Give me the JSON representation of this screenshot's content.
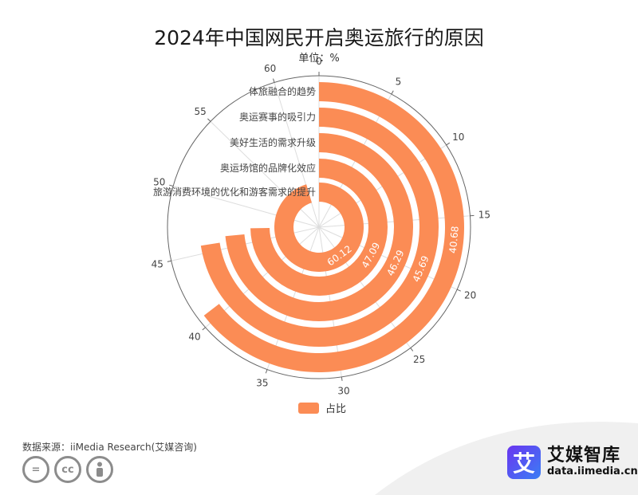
{
  "title": "2024年中国网民开启奥运旅行的原因",
  "unit": "单位：%",
  "legend_label": "占比",
  "source": "数据来源：iiMedia Research(艾媒咨询)",
  "brand": {
    "name": "艾媒智库",
    "url": "data.iimedia.cn",
    "logo_char": "艾"
  },
  "cc_icons": [
    "equals-icon",
    "cc-icon",
    "person-icon"
  ],
  "colors": {
    "bar": "#fb8c55",
    "axis": "#666666",
    "grid": "#dddddd"
  },
  "chart_data": {
    "type": "bar",
    "variant": "polar-radial-bar",
    "title": "2024年中国网民开启奥运旅行的原因",
    "unit": "单位：%",
    "categories": [
      "旅游消费环境的优化和游客需求的提升",
      "奥运场馆的品牌化效应",
      "美好生活的需求升级",
      "奥运赛事的吸引力",
      "体旅融合的趋势"
    ],
    "series": [
      {
        "name": "占比",
        "values": [
          60.12,
          47.09,
          46.29,
          45.69,
          40.68
        ]
      }
    ],
    "angle_axis": {
      "min": 0,
      "max": 63,
      "ticks": [
        0,
        5,
        10,
        15,
        20,
        25,
        30,
        35,
        40,
        45,
        50,
        55,
        60
      ]
    },
    "legend": "bottom-center"
  }
}
